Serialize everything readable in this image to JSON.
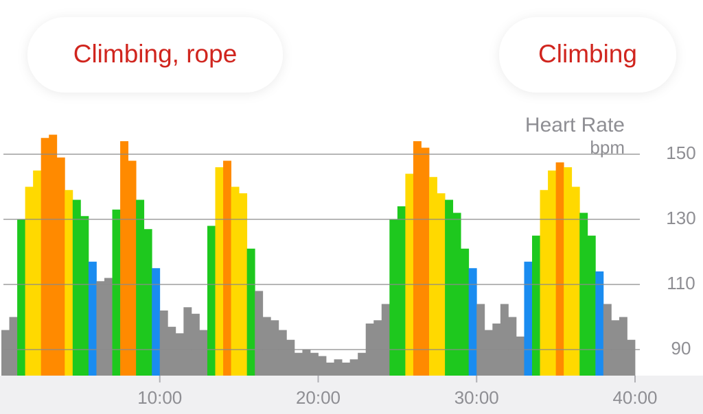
{
  "badges": [
    "Climbing, rope",
    "Climbing"
  ],
  "chart_data": {
    "type": "area",
    "title": "Heart Rate",
    "y_label": "bpm",
    "x": [
      0,
      0.5,
      1,
      1.5,
      2,
      2.5,
      3,
      3.5,
      4,
      4.5,
      5,
      5.5,
      6,
      6.5,
      7,
      7.5,
      8,
      8.5,
      9,
      9.5,
      10,
      10.5,
      11,
      11.5,
      12,
      12.5,
      13,
      13.5,
      14,
      14.5,
      15,
      15.5,
      16,
      16.5,
      17,
      17.5,
      18,
      18.5,
      19,
      19.5,
      20,
      20.5,
      21,
      21.5,
      22,
      22.5,
      23,
      23.5,
      24,
      24.5,
      25,
      25.5,
      26,
      26.5,
      27,
      27.5,
      28,
      28.5,
      29,
      29.5,
      30,
      30.5,
      31,
      31.5,
      32,
      32.5,
      33,
      33.5,
      34,
      34.5,
      35,
      35.5,
      36,
      36.5,
      37,
      37.5,
      38,
      38.5,
      39,
      39.5
    ],
    "values": [
      96,
      100,
      130,
      140,
      145,
      155,
      156,
      149,
      139,
      136,
      131,
      117,
      111,
      112,
      133,
      154,
      148,
      136,
      127,
      115,
      102,
      97,
      95,
      103,
      101,
      96,
      128,
      146,
      148,
      140,
      138,
      121,
      108,
      100,
      99,
      96,
      93,
      89,
      90,
      89,
      88,
      86,
      87,
      86,
      87,
      89,
      98,
      99,
      104,
      130,
      134,
      144,
      154,
      152,
      143,
      138,
      136,
      132,
      121,
      115,
      104,
      96,
      98,
      104,
      100,
      94,
      117,
      125,
      139,
      145,
      147.5,
      146,
      140,
      132,
      125,
      114,
      104,
      99,
      100,
      93
    ],
    "color": "#8e8e8e",
    "zones": [
      {
        "min": 113,
        "color": "#1a8cf0"
      },
      {
        "min": 120,
        "color": "#1ec81e"
      },
      {
        "min": 137,
        "color": "#ffd900"
      },
      {
        "min": 147,
        "color": "#ff8a00"
      }
    ],
    "xlim": [
      0,
      40
    ],
    "xticks": [
      {
        "value": 10,
        "label": "10:00"
      },
      {
        "value": 20,
        "label": "20:00"
      },
      {
        "value": 30,
        "label": "30:00"
      },
      {
        "value": 40,
        "label": "40:00"
      }
    ],
    "ylim": [
      82,
      160
    ],
    "yticks": [
      90,
      110,
      130,
      150
    ],
    "grid": true
  }
}
